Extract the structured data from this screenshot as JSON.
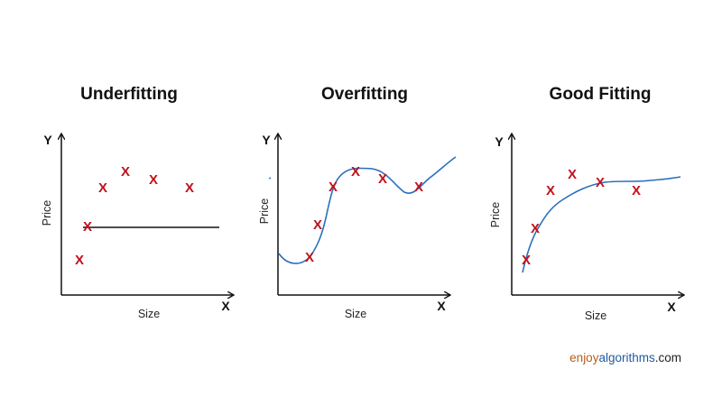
{
  "panels": [
    {
      "id": "underfitting",
      "title": "Underfitting",
      "x_axis_letter": "X",
      "y_axis_letter": "Y",
      "x_label": "Size",
      "y_label": "Price",
      "marker_symbol": "X",
      "fit": "horizontal-line"
    },
    {
      "id": "overfitting",
      "title": "Overfitting",
      "x_axis_letter": "X",
      "y_axis_letter": "Y",
      "x_label": "Size",
      "y_label": "Price",
      "marker_symbol": "X",
      "fit": "wiggly-curve"
    },
    {
      "id": "good-fitting",
      "title": "Good Fitting",
      "x_axis_letter": "X",
      "y_axis_letter": "Y",
      "x_label": "Size",
      "y_label": "Price",
      "marker_symbol": "X",
      "fit": "smooth-curve"
    }
  ],
  "brand": {
    "part1": "enjoy",
    "part2": "algorithms",
    "part3": ".com"
  },
  "colors": {
    "marker": "#c0111b",
    "curve": "#2a6fbf",
    "axis": "#111111",
    "brand_enjoy": "#b85c1a",
    "brand_algorithms": "#1f5a9e",
    "brand_com": "#222222"
  }
}
